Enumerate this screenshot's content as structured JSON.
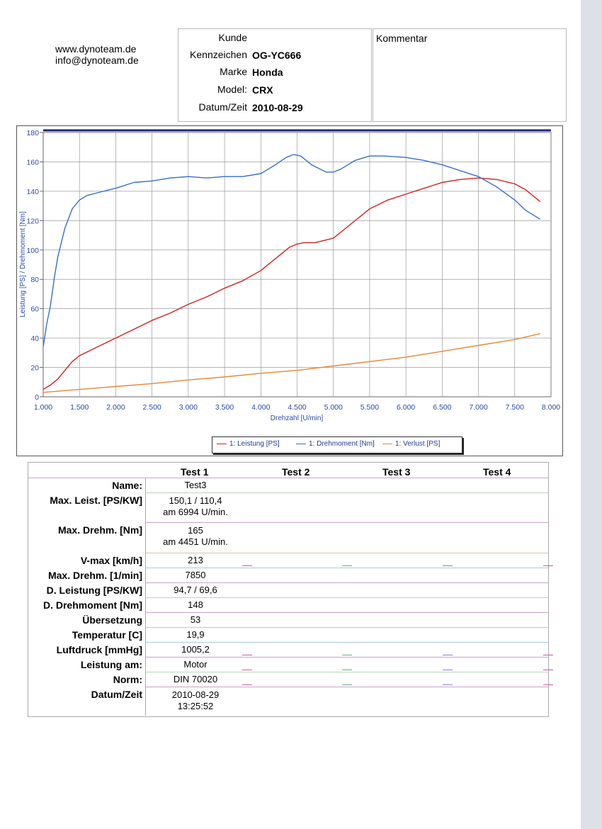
{
  "contact": {
    "web": "www.dynoteam.de",
    "email": "info@dynoteam.de"
  },
  "header": {
    "kunde_label": "Kunde",
    "kunde_value": "",
    "kennzeichen_label": "Kennzeichen",
    "kennzeichen_value": "OG-YC666",
    "marke_label": "Marke",
    "marke_value": "Honda",
    "model_label": "Model:",
    "model_value": "CRX",
    "datum_label": "Datum/Zeit",
    "datum_value": "2010-08-29",
    "kommentar_label": "Kommentar"
  },
  "chart_data": {
    "type": "line",
    "xlabel": "Drehzahl [U/min]",
    "ylabel": "Leistung [PS] / Drehmoment [Nm]",
    "xlim": [
      1000,
      8000
    ],
    "ylim": [
      0,
      180
    ],
    "grid": true,
    "legend_position": "bottom-center",
    "x_ticks": [
      1000,
      1500,
      2000,
      2500,
      3000,
      3500,
      4000,
      4500,
      5000,
      5500,
      6000,
      6500,
      7000,
      7500,
      8000
    ],
    "x_tick_labels": [
      "1.000",
      "1.500",
      "2.000",
      "2.500",
      "3.000",
      "3.500",
      "4.000",
      "4.500",
      "5.000",
      "5.500",
      "6.000",
      "6.500",
      "7.000",
      "7.500",
      "8.000"
    ],
    "y_ticks": [
      0,
      20,
      40,
      60,
      80,
      100,
      120,
      140,
      160,
      180
    ],
    "y_tick_labels": [
      "0",
      "20",
      "40",
      "60",
      "80",
      "100",
      "120",
      "140",
      "160",
      "180"
    ],
    "series": [
      {
        "name": "1: Leistung [PS]",
        "color": "#cc2222",
        "x": [
          1000,
          1100,
          1200,
          1300,
          1400,
          1500,
          1750,
          2000,
          2250,
          2500,
          2750,
          3000,
          3250,
          3500,
          3750,
          4000,
          4200,
          4400,
          4500,
          4600,
          4750,
          5000,
          5250,
          5500,
          5750,
          6000,
          6250,
          6500,
          6750,
          7000,
          7250,
          7500,
          7650,
          7850
        ],
        "y": [
          5,
          8,
          12,
          18,
          24,
          28,
          34,
          40,
          46,
          52,
          57,
          63,
          68,
          74,
          79,
          86,
          94,
          102,
          104,
          105,
          105,
          108,
          118,
          128,
          134,
          138,
          142,
          146,
          148,
          149,
          148,
          145,
          141,
          133
        ]
      },
      {
        "name": "1: Drehmoment [Nm]",
        "color": "#3a6fc4",
        "x": [
          1000,
          1050,
          1100,
          1150,
          1200,
          1300,
          1400,
          1500,
          1600,
          1750,
          2000,
          2250,
          2500,
          2750,
          3000,
          3250,
          3500,
          3750,
          4000,
          4200,
          4350,
          4450,
          4550,
          4700,
          4900,
          5000,
          5100,
          5300,
          5500,
          5700,
          6000,
          6250,
          6500,
          6750,
          7000,
          7250,
          7500,
          7650,
          7850
        ],
        "y": [
          34,
          50,
          62,
          80,
          95,
          115,
          128,
          134,
          137,
          139,
          142,
          146,
          147,
          149,
          150,
          149,
          150,
          150,
          152,
          158,
          163,
          165,
          164,
          158,
          153,
          153,
          155,
          161,
          164,
          164,
          163,
          161,
          158,
          154,
          150,
          143,
          134,
          127,
          121
        ]
      },
      {
        "name": "1: Verlust [PS]",
        "color": "#e08a3a",
        "x": [
          1000,
          1500,
          2000,
          2500,
          3000,
          3500,
          4000,
          4500,
          5000,
          5500,
          6000,
          6500,
          7000,
          7500,
          7850
        ],
        "y": [
          3,
          5,
          7,
          9,
          11.5,
          13.5,
          16,
          18,
          21,
          24,
          27,
          31,
          35,
          39,
          43
        ]
      }
    ]
  },
  "table": {
    "headers": [
      "Test 1",
      "Test 2",
      "Test 3",
      "Test 4"
    ],
    "rows": [
      {
        "label": "Name:",
        "lines": [
          "Test3"
        ]
      },
      {
        "label": "Max. Leist. [PS/KW]",
        "lines": [
          "150,1 / 110,4",
          "am 6994 U/min."
        ]
      },
      {
        "label": "Max. Drehm. [Nm]",
        "lines": [
          "165",
          "am 4451 U/min."
        ]
      },
      {
        "label": "V-max [km/h]",
        "lines": [
          "213"
        ]
      },
      {
        "label": "Max. Drehm. [1/min]",
        "lines": [
          "7850"
        ]
      },
      {
        "label": "D. Leistung [PS/KW]",
        "lines": [
          "94,7 / 69,6"
        ]
      },
      {
        "label": "D. Drehmoment [Nm]",
        "lines": [
          "148"
        ]
      },
      {
        "label": "Übersetzung",
        "lines": [
          "53"
        ]
      },
      {
        "label": "Temperatur [C]",
        "lines": [
          "19,9"
        ]
      },
      {
        "label": "Luftdruck [mmHg]",
        "lines": [
          "1005,2"
        ]
      },
      {
        "label": "Leistung am:",
        "lines": [
          "Motor"
        ]
      },
      {
        "label": "Norm:",
        "lines": [
          "DIN 70020"
        ]
      },
      {
        "label": "Datum/Zeit",
        "lines": [
          "2010-08-29",
          "13:25:52"
        ]
      }
    ]
  }
}
